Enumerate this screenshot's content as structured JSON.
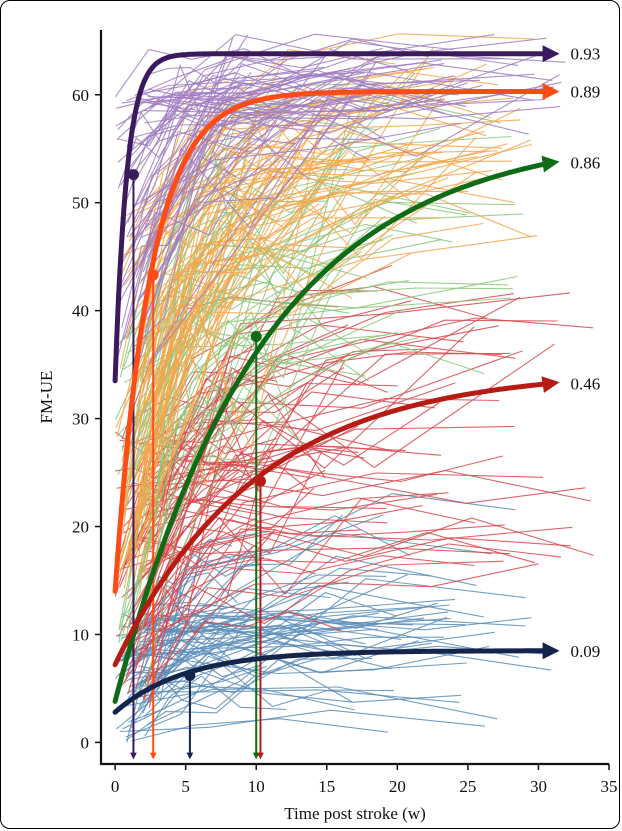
{
  "chart_data": {
    "type": "line",
    "title": "",
    "xlabel": "Time post stroke (w)",
    "ylabel": "FM-UE",
    "xlim": [
      -1,
      35
    ],
    "ylim": [
      -2,
      66
    ],
    "xticks": [
      0,
      5,
      10,
      15,
      20,
      25,
      30,
      35
    ],
    "yticks": [
      0,
      10,
      20,
      30,
      40,
      50,
      60
    ],
    "grid": false,
    "legend": "none",
    "background_trajectories": [
      {
        "group": "purple",
        "color": "#a07cc0",
        "count": 70,
        "start_min": 34,
        "start_max": 62,
        "plateau_min": 58,
        "plateau_max": 66,
        "xmax": 32
      },
      {
        "group": "orange",
        "color": "#f5a64a",
        "count": 80,
        "start_min": 12,
        "start_max": 50,
        "plateau_min": 48,
        "plateau_max": 64,
        "xmax": 30
      },
      {
        "group": "green",
        "color": "#8cc77b",
        "count": 60,
        "start_min": 4,
        "start_max": 38,
        "plateau_min": 35,
        "plateau_max": 62,
        "xmax": 29
      },
      {
        "group": "red",
        "color": "#d9484c",
        "count": 85,
        "start_min": 3,
        "start_max": 30,
        "plateau_min": 14,
        "plateau_max": 44,
        "xmax": 34
      },
      {
        "group": "blue",
        "color": "#5b8db8",
        "count": 75,
        "start_min": 0,
        "start_max": 12,
        "plateau_min": 1,
        "plateau_max": 22,
        "xmax": 31
      }
    ],
    "series": [
      {
        "color": "#3b1a5c",
        "start": 33.5,
        "plateau": 63.8,
        "rate": 1.2,
        "marker": [
          1.3,
          52.6
        ],
        "arrow_x": 1.3,
        "end_label": "0.93"
      },
      {
        "color": "#ff4b16",
        "start": 14,
        "plateau": 60.3,
        "rate": 0.4,
        "marker": [
          2.7,
          43.3
        ],
        "arrow_x": 2.7,
        "end_label": "0.89"
      },
      {
        "color": "#0f6b16",
        "start": 3.8,
        "plateau": 56.5,
        "rate": 0.095,
        "marker": [
          10,
          37.6
        ],
        "arrow_x": 10,
        "end_label": "0.86"
      },
      {
        "color": "#b71c14",
        "start": 7.2,
        "plateau": 34.5,
        "rate": 0.1,
        "marker": [
          10.3,
          24.2
        ],
        "arrow_x": 10.3,
        "end_label": "0.46"
      },
      {
        "color": "#14244a",
        "start": 2.8,
        "plateau": 8.5,
        "rate": 0.2,
        "marker": [
          5.3,
          6.2
        ],
        "arrow_x": 5.3,
        "end_label": "0.09"
      }
    ]
  }
}
